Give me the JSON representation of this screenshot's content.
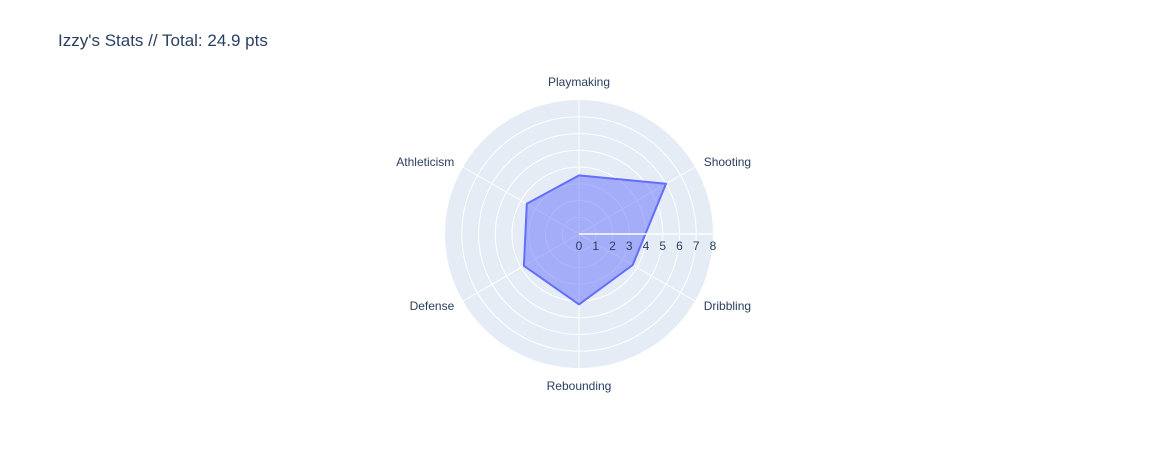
{
  "chart_data": {
    "type": "radar",
    "title": "Izzy's Stats // Total: 24.9 pts",
    "categories": [
      "Playmaking",
      "Shooting",
      "Dribbling",
      "Rebounding",
      "Defense",
      "Athleticism"
    ],
    "series": [
      {
        "name": "Izzy",
        "values": [
          3.5,
          6.0,
          3.7,
          4.2,
          3.8,
          3.6
        ]
      }
    ],
    "radial_range": [
      0,
      8
    ],
    "radial_ticks": [
      0,
      1,
      2,
      3,
      4,
      5,
      6,
      7,
      8
    ],
    "colors": {
      "fill": "#636efa",
      "line": "#636efa",
      "polar_bg": "#e5ecf6",
      "grid": "#ffffff",
      "text": "#2a3f5f"
    }
  }
}
